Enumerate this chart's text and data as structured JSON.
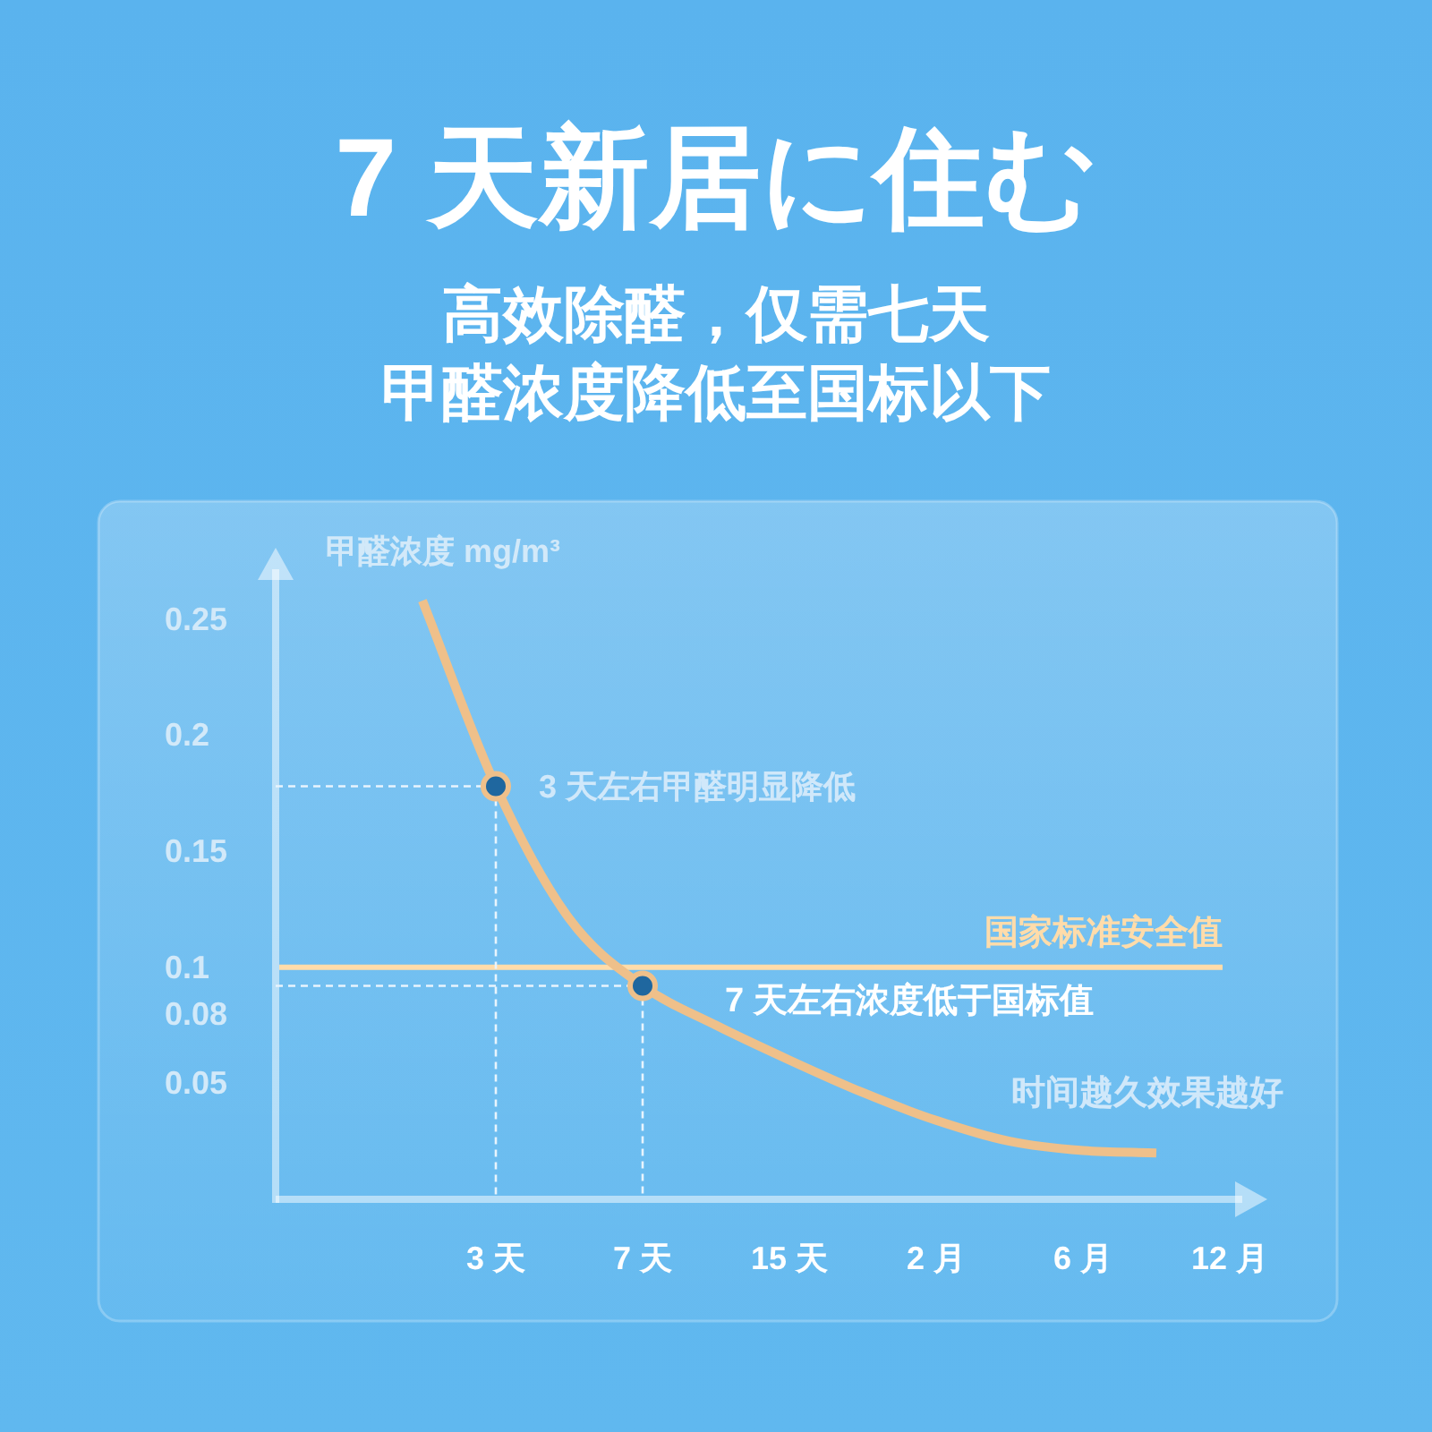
{
  "chart_data": {
    "type": "line",
    "title": "7 天新居に住む",
    "subtitle": "高效除醛，仅需七天",
    "ylabel": "甲醛浓度 mg/m³",
    "categories": [
      null,
      null,
      null,
      "3 天",
      null,
      "7 天",
      null,
      "15 天",
      null,
      "2 月",
      null,
      "6 月",
      null,
      "12 月"
    ],
    "series": [
      {
        "color": "#efc08a",
        "values": [
          null,
          null,
          0.258,
          0.178,
          0.121,
          0.092,
          0.075,
          0.06,
          0.046,
          0.034,
          0.025,
          0.021,
          0.02,
          null
        ]
      },
      {
        "color": "#e8f4fd",
        "line_style": "dashed",
        "values": [
          0.178,
          0.178,
          0.178,
          0.178,
          null,
          null,
          null,
          null,
          null,
          null,
          null,
          null,
          null,
          null
        ]
      },
      {
        "color": "#e8f4fd",
        "line_style": "dashed",
        "values": [
          0.092,
          0.092,
          0.092,
          0.092,
          0.092,
          0.092,
          null,
          null,
          null,
          null,
          null,
          null,
          null,
          null
        ]
      },
      {
        "type": "scatter",
        "x": [
          "3 天",
          "7 天"
        ],
        "values": [
          0.178,
          0.092
        ],
        "color": "#1f679f",
        "marker": "circle",
        "line_style": "dashed"
      }
    ],
    "ylim": [
      0,
      0.27
    ],
    "yticks": [
      0.05,
      0.08,
      0.1,
      0.15,
      0.2,
      0.25
    ],
    "ref_lines": [
      {
        "axis": "y",
        "value": 0.1,
        "label": "国家标准安全值",
        "color": "#ffdcaa"
      }
    ],
    "annotations": [
      {
        "text": "3 天左右甲醛明显降低",
        "x": "3 天",
        "y": 0.178
      },
      {
        "text": "7 天左右浓度低于国标值",
        "x": "7 天",
        "y": 0.092
      },
      "甲醛浓度降低至国标以下",
      "时间越久效果越好"
    ]
  }
}
